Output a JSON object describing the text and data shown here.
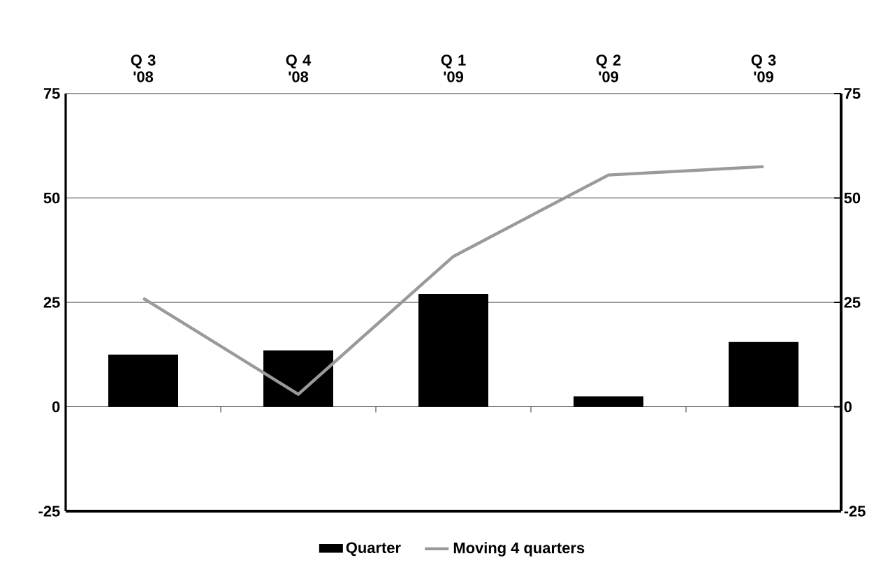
{
  "chart_data": {
    "type": "bar",
    "categories": [
      "Q 3 '08",
      "Q 4 '08",
      "Q 1 '09",
      "Q 2 '09",
      "Q 3 '09"
    ],
    "series": [
      {
        "name": "Quarter",
        "color": "#000000",
        "values": [
          12.5,
          13.5,
          27,
          2.5,
          15.5
        ]
      },
      {
        "name": "Moving 4 quarters",
        "type": "line",
        "color": "#9a9a9a",
        "values": [
          26,
          3,
          36,
          55.5,
          57.5
        ]
      }
    ],
    "ylim": [
      -25,
      75
    ],
    "yticks": [
      -25,
      0,
      25,
      50,
      75
    ],
    "y2lim": [
      -25,
      75
    ],
    "y2ticks": [
      -25,
      0,
      25,
      50,
      75
    ],
    "grid": "y",
    "legend": "bottom",
    "marker": "none",
    "line_style": "solid"
  }
}
